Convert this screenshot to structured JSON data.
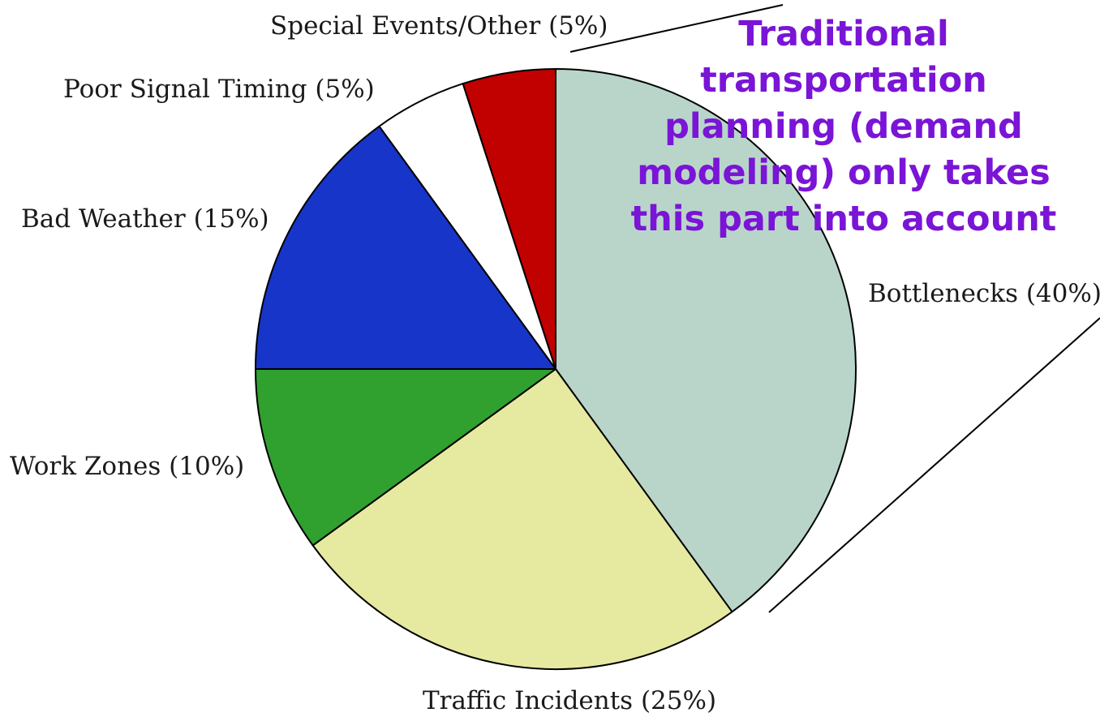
{
  "chart_data": {
    "type": "pie",
    "start": "12 o'clock",
    "direction": "clockwise",
    "slices": [
      {
        "label": "Bottlenecks (40%)",
        "value": 40,
        "color": "#b9d5ca"
      },
      {
        "label": "Traffic Incidents (25%)",
        "value": 25,
        "color": "#e6e9a0"
      },
      {
        "label": "Work Zones (10%)",
        "value": 10,
        "color": "#30a02f"
      },
      {
        "label": "Bad Weather (15%)",
        "value": 15,
        "color": "#1735c9"
      },
      {
        "label": "Poor Signal Timing (5%)",
        "value": 5,
        "color": "#ffffff"
      },
      {
        "label": "Special Events/Other (5%)",
        "value": 5,
        "color": "#c10000"
      }
    ]
  },
  "annotation": {
    "lines": [
      "Traditional",
      "transportation",
      "planning (demand",
      "modeling) only takes",
      "this part into account"
    ],
    "color": "#7a14d6"
  }
}
